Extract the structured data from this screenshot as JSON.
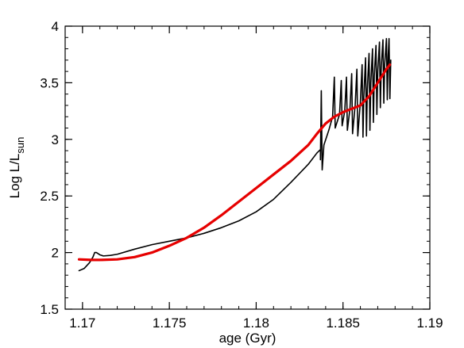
{
  "chart_data": {
    "type": "line",
    "title": "",
    "xlabel": "age (Gyr)",
    "ylabel": {
      "main": "Log L/L",
      "subscript": "sun"
    },
    "xlim": [
      1.169,
      1.19
    ],
    "ylim": [
      1.5,
      4.0
    ],
    "xticks": [
      {
        "value": 1.17,
        "label": "1.17"
      },
      {
        "value": 1.175,
        "label": "1.175"
      },
      {
        "value": 1.18,
        "label": "1.18"
      },
      {
        "value": 1.185,
        "label": "1.185"
      },
      {
        "value": 1.19,
        "label": "1.19"
      }
    ],
    "yticks": [
      {
        "value": 1.5,
        "label": "1.5"
      },
      {
        "value": 2.0,
        "label": "2"
      },
      {
        "value": 2.5,
        "label": "2.5"
      },
      {
        "value": 3.0,
        "label": "3"
      },
      {
        "value": 3.5,
        "label": "3.5"
      },
      {
        "value": 4.0,
        "label": "4"
      }
    ],
    "x_minor_step": 0.001,
    "y_minor_step": 0.1,
    "grid": false,
    "legend": "none",
    "series": [
      {
        "color": "#000000",
        "stroke": 1.6,
        "style": "thin",
        "points": [
          [
            1.1698,
            1.84
          ],
          [
            1.1701,
            1.86
          ],
          [
            1.1704,
            1.91
          ],
          [
            1.1706,
            1.96
          ],
          [
            1.1707,
            2.0
          ],
          [
            1.1708,
            2.0
          ],
          [
            1.171,
            1.98
          ],
          [
            1.1712,
            1.97
          ],
          [
            1.1716,
            1.975
          ],
          [
            1.172,
            1.985
          ],
          [
            1.173,
            2.03
          ],
          [
            1.174,
            2.07
          ],
          [
            1.175,
            2.1
          ],
          [
            1.176,
            2.13
          ],
          [
            1.177,
            2.17
          ],
          [
            1.178,
            2.22
          ],
          [
            1.179,
            2.28
          ],
          [
            1.18,
            2.36
          ],
          [
            1.181,
            2.47
          ],
          [
            1.182,
            2.62
          ],
          [
            1.183,
            2.78
          ],
          [
            1.1835,
            2.88
          ],
          [
            1.1837,
            2.91
          ],
          [
            1.1837,
            2.82
          ],
          [
            1.18375,
            3.43
          ],
          [
            1.1838,
            2.73
          ],
          [
            1.1839,
            2.95
          ],
          [
            1.1842,
            3.09
          ],
          [
            1.1844,
            3.2
          ],
          [
            1.1845,
            3.55
          ],
          [
            1.18455,
            3.1
          ],
          [
            1.1848,
            3.22
          ],
          [
            1.1849,
            3.52
          ],
          [
            1.18495,
            3.12
          ],
          [
            1.1851,
            3.25
          ],
          [
            1.1852,
            3.55
          ],
          [
            1.18525,
            3.08
          ],
          [
            1.1854,
            3.27
          ],
          [
            1.1855,
            3.58
          ],
          [
            1.18555,
            3.05
          ],
          [
            1.1857,
            3.3
          ],
          [
            1.1858,
            3.62
          ],
          [
            1.18585,
            3.03
          ],
          [
            1.186,
            3.33
          ],
          [
            1.1861,
            3.66
          ],
          [
            1.18615,
            3.02
          ],
          [
            1.1862,
            3.38
          ],
          [
            1.1863,
            3.72
          ],
          [
            1.18635,
            3.03
          ],
          [
            1.1864,
            3.44
          ],
          [
            1.1865,
            3.76
          ],
          [
            1.18655,
            3.08
          ],
          [
            1.1866,
            3.5
          ],
          [
            1.1867,
            3.8
          ],
          [
            1.18675,
            3.15
          ],
          [
            1.1868,
            3.56
          ],
          [
            1.1869,
            3.83
          ],
          [
            1.18695,
            3.22
          ],
          [
            1.187,
            3.6
          ],
          [
            1.1871,
            3.86
          ],
          [
            1.18715,
            3.28
          ],
          [
            1.1872,
            3.63
          ],
          [
            1.1873,
            3.88
          ],
          [
            1.18735,
            3.32
          ],
          [
            1.1874,
            3.66
          ],
          [
            1.1875,
            3.89
          ],
          [
            1.18755,
            3.35
          ],
          [
            1.1876,
            3.73
          ],
          [
            1.18765,
            3.89
          ],
          [
            1.1877,
            3.36
          ],
          [
            1.18775,
            3.7
          ]
        ]
      },
      {
        "color": "#e60000",
        "stroke": 3.2,
        "style": "thick",
        "points": [
          [
            1.1698,
            1.94
          ],
          [
            1.1705,
            1.935
          ],
          [
            1.171,
            1.935
          ],
          [
            1.172,
            1.94
          ],
          [
            1.173,
            1.96
          ],
          [
            1.174,
            2.0
          ],
          [
            1.175,
            2.06
          ],
          [
            1.176,
            2.13
          ],
          [
            1.177,
            2.22
          ],
          [
            1.178,
            2.33
          ],
          [
            1.179,
            2.45
          ],
          [
            1.18,
            2.57
          ],
          [
            1.181,
            2.69
          ],
          [
            1.182,
            2.81
          ],
          [
            1.183,
            2.95
          ],
          [
            1.1835,
            3.05
          ],
          [
            1.184,
            3.14
          ],
          [
            1.1845,
            3.2
          ],
          [
            1.185,
            3.24
          ],
          [
            1.1855,
            3.27
          ],
          [
            1.186,
            3.3
          ],
          [
            1.1865,
            3.38
          ],
          [
            1.187,
            3.5
          ],
          [
            1.1875,
            3.62
          ],
          [
            1.1877,
            3.66
          ]
        ]
      }
    ]
  }
}
